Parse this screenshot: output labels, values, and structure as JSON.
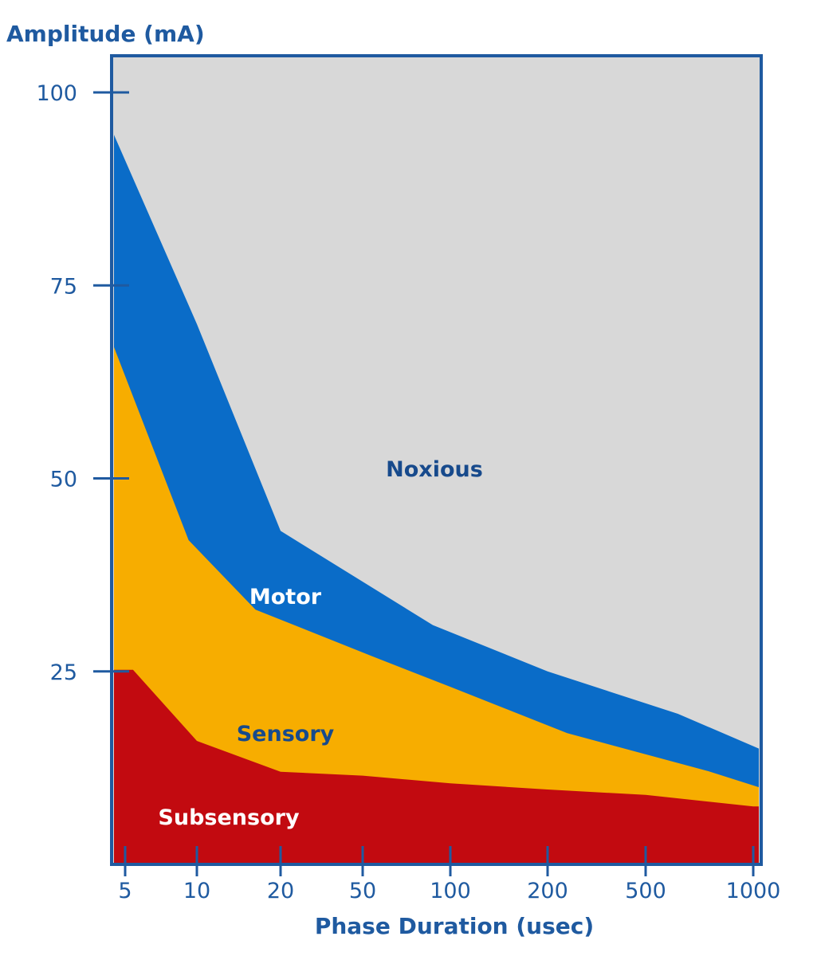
{
  "chart_data": {
    "type": "area",
    "title": "",
    "ylabel": "Amplitude (mA)",
    "xlabel": "Phase Duration (usec)",
    "ylim": [
      0,
      104
    ],
    "y_ticks": [
      25,
      50,
      75,
      100
    ],
    "x_ticks": [
      "5",
      "10",
      "20",
      "50",
      "100",
      "200",
      "500",
      "1000"
    ],
    "grid": false,
    "legend": "none",
    "series": [
      {
        "name": "Subsensory",
        "color": "#c20a10",
        "label_color": "#ffffff",
        "points": [
          [
            0.0,
            25.2
          ],
          [
            0.23,
            25.2
          ],
          [
            1.0,
            16.0
          ],
          [
            2.0,
            12.0
          ],
          [
            3.0,
            11.5
          ],
          [
            4.0,
            10.5
          ],
          [
            5.0,
            9.7
          ],
          [
            6.0,
            9.0
          ],
          [
            7.0,
            7.5
          ],
          [
            7.05,
            7.5
          ]
        ]
      },
      {
        "name": "Sensory",
        "color": "#f7ad00",
        "label_color": "#174a8c",
        "points": [
          [
            0.0,
            67.0
          ],
          [
            0.9,
            42.0
          ],
          [
            1.7,
            33.0
          ],
          [
            3.1,
            27.0
          ],
          [
            4.0,
            23.0
          ],
          [
            5.2,
            17.0
          ],
          [
            6.6,
            12.0
          ],
          [
            7.05,
            10.0
          ]
        ]
      },
      {
        "name": "Motor",
        "color": "#0a6cc8",
        "label_color": "#ffffff",
        "points": [
          [
            0.0,
            94.5
          ],
          [
            1.0,
            70.0
          ],
          [
            2.0,
            43.2
          ],
          [
            3.8,
            31.0
          ],
          [
            5.0,
            25.0
          ],
          [
            6.3,
            19.5
          ],
          [
            7.05,
            15.0
          ]
        ]
      },
      {
        "name": "Noxious",
        "color": "#d8d8d8",
        "label_color": "#174a8c",
        "points": []
      }
    ]
  }
}
